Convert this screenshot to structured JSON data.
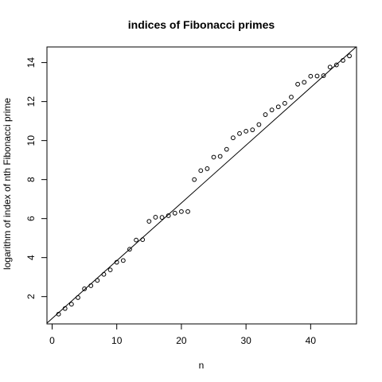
{
  "chart_data": {
    "type": "scatter",
    "title": "indices of Fibonacci primes",
    "xlabel": "n",
    "ylabel": "logarithm of index of nth Fibonacci prime",
    "xlim": [
      -0.8,
      47.1
    ],
    "ylim": [
      0.6,
      14.8
    ],
    "xticks": [
      0,
      10,
      20,
      30,
      40
    ],
    "yticks": [
      2,
      4,
      6,
      8,
      10,
      12,
      14
    ],
    "grid": false,
    "legend": "none",
    "points": [
      [
        1,
        1.1
      ],
      [
        2,
        1.39
      ],
      [
        3,
        1.61
      ],
      [
        4,
        1.95
      ],
      [
        5,
        2.4
      ],
      [
        6,
        2.56
      ],
      [
        7,
        2.83
      ],
      [
        8,
        3.14
      ],
      [
        9,
        3.37
      ],
      [
        10,
        3.76
      ],
      [
        11,
        3.85
      ],
      [
        12,
        4.43
      ],
      [
        13,
        4.9
      ],
      [
        14,
        4.92
      ],
      [
        15,
        5.86
      ],
      [
        16,
        6.07
      ],
      [
        17,
        6.06
      ],
      [
        18,
        6.15
      ],
      [
        19,
        6.28
      ],
      [
        20,
        6.36
      ],
      [
        21,
        6.36
      ],
      [
        22,
        8.0
      ],
      [
        23,
        8.46
      ],
      [
        24,
        8.56
      ],
      [
        25,
        9.15
      ],
      [
        26,
        9.19
      ],
      [
        27,
        9.55
      ],
      [
        28,
        10.14
      ],
      [
        29,
        10.36
      ],
      [
        30,
        10.48
      ],
      [
        31,
        10.55
      ],
      [
        32,
        10.82
      ],
      [
        33,
        11.33
      ],
      [
        34,
        11.57
      ],
      [
        35,
        11.73
      ],
      [
        36,
        11.91
      ],
      [
        37,
        12.23
      ],
      [
        38,
        12.89
      ],
      [
        39,
        12.99
      ],
      [
        40,
        13.3
      ],
      [
        41,
        13.31
      ],
      [
        42,
        13.33
      ],
      [
        43,
        13.77
      ],
      [
        44,
        13.88
      ],
      [
        45,
        14.11
      ],
      [
        46,
        14.34
      ]
    ],
    "fit_line": {
      "intercept": 0.88,
      "slope": 0.296
    }
  }
}
